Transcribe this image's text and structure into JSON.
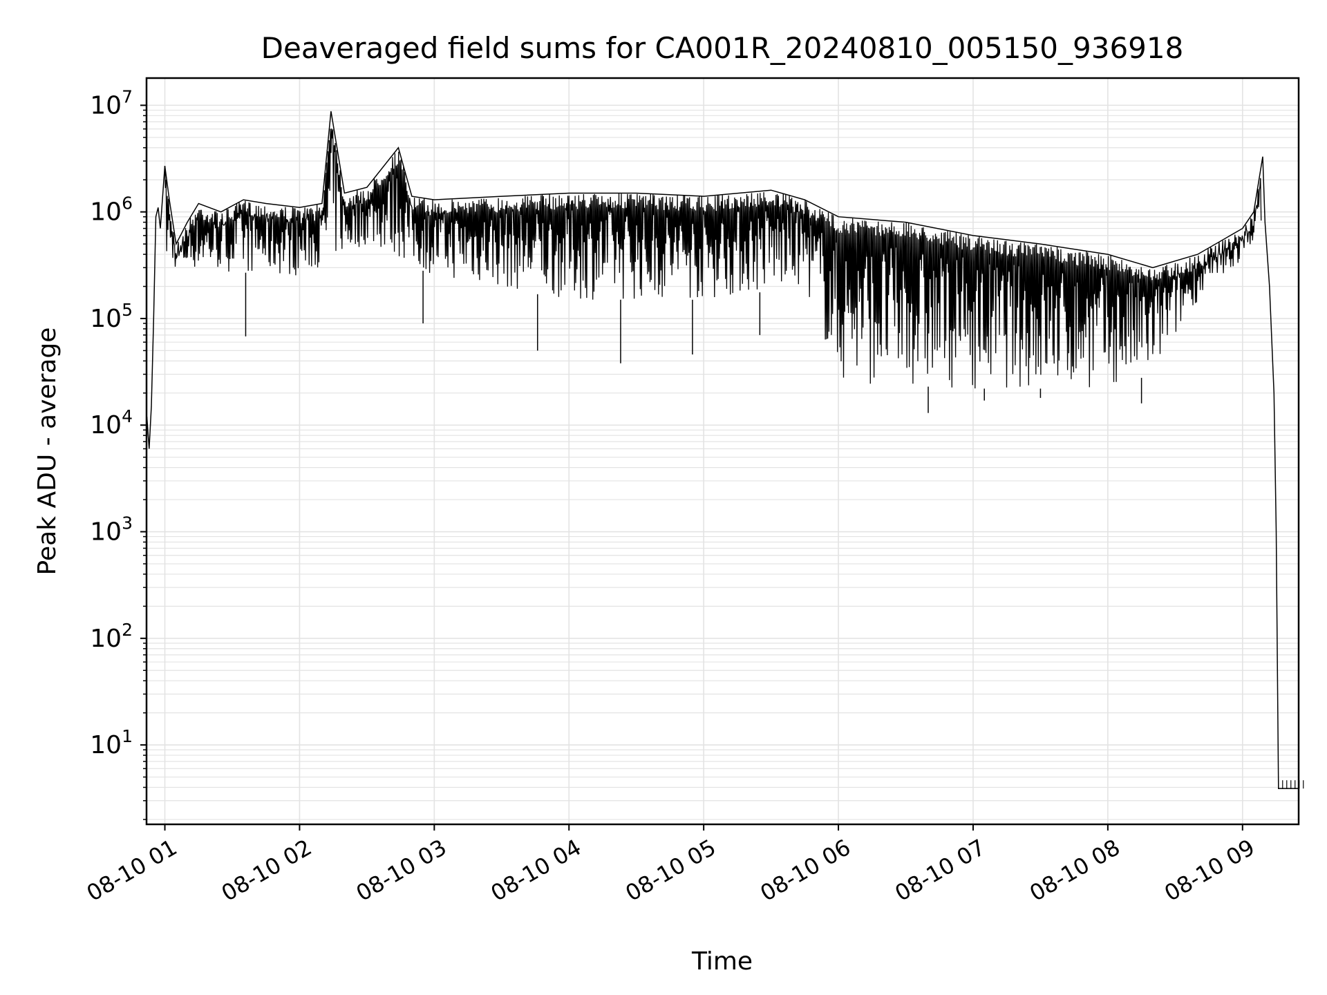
{
  "chart_data": {
    "type": "line",
    "title": "Deaveraged field sums for CA001R_20240810_005150_936918",
    "xlabel": "Time",
    "ylabel": "Peak ADU - average",
    "yscale": "log",
    "ylim": [
      1.8,
      18000000
    ],
    "xlim": [
      "2024-08-10 00:51:50",
      "2024-08-10 09:25:00"
    ],
    "grid": true,
    "line_color": "#000000",
    "grid_color": "#e3e3e3",
    "x_ticks": [
      {
        "t": "2024-08-10 01:00",
        "label": "08-10 01"
      },
      {
        "t": "2024-08-10 02:00",
        "label": "08-10 02"
      },
      {
        "t": "2024-08-10 03:00",
        "label": "08-10 03"
      },
      {
        "t": "2024-08-10 04:00",
        "label": "08-10 04"
      },
      {
        "t": "2024-08-10 05:00",
        "label": "08-10 05"
      },
      {
        "t": "2024-08-10 06:00",
        "label": "08-10 06"
      },
      {
        "t": "2024-08-10 07:00",
        "label": "08-10 07"
      },
      {
        "t": "2024-08-10 08:00",
        "label": "08-10 08"
      },
      {
        "t": "2024-08-10 09:00",
        "label": "08-10 09"
      }
    ],
    "y_ticks": [
      {
        "value": 10,
        "base": "10",
        "exp": "1"
      },
      {
        "value": 100,
        "base": "10",
        "exp": "2"
      },
      {
        "value": 1000,
        "base": "10",
        "exp": "3"
      },
      {
        "value": 10000,
        "base": "10",
        "exp": "4"
      },
      {
        "value": 100000,
        "base": "10",
        "exp": "5"
      },
      {
        "value": 1000000,
        "base": "10",
        "exp": "6"
      },
      {
        "value": 10000000,
        "base": "10",
        "exp": "7"
      }
    ],
    "series": [
      {
        "points": [
          [
            "2024-08-10 00:52",
            12000
          ],
          [
            "2024-08-10 00:53",
            6000
          ],
          [
            "2024-08-10 00:54",
            15000
          ],
          [
            "2024-08-10 00:55",
            100000
          ],
          [
            "2024-08-10 00:56",
            900000
          ],
          [
            "2024-08-10 00:57",
            1100000
          ],
          [
            "2024-08-10 00:58",
            700000
          ],
          [
            "2024-08-10 01:00",
            2700000
          ],
          [
            "2024-08-10 01:02",
            1300000
          ],
          [
            "2024-08-10 01:05",
            500000
          ],
          [
            "2024-08-10 01:10",
            800000
          ],
          [
            "2024-08-10 01:15",
            1200000
          ],
          [
            "2024-08-10 01:25",
            1000000
          ],
          [
            "2024-08-10 01:35",
            1300000
          ],
          [
            "2024-08-10 01:45",
            1200000
          ],
          [
            "2024-08-10 02:00",
            1100000
          ],
          [
            "2024-08-10 02:10",
            1200000
          ],
          [
            "2024-08-10 02:14",
            8800000
          ],
          [
            "2024-08-10 02:20",
            1500000
          ],
          [
            "2024-08-10 02:30",
            1700000
          ],
          [
            "2024-08-10 02:44",
            4000000
          ],
          [
            "2024-08-10 02:50",
            1400000
          ],
          [
            "2024-08-10 03:00",
            1300000
          ],
          [
            "2024-08-10 03:30",
            1400000
          ],
          [
            "2024-08-10 04:00",
            1500000
          ],
          [
            "2024-08-10 04:30",
            1500000
          ],
          [
            "2024-08-10 05:00",
            1400000
          ],
          [
            "2024-08-10 05:30",
            1600000
          ],
          [
            "2024-08-10 05:45",
            1300000
          ],
          [
            "2024-08-10 06:00",
            900000
          ],
          [
            "2024-08-10 06:30",
            800000
          ],
          [
            "2024-08-10 07:00",
            600000
          ],
          [
            "2024-08-10 07:30",
            500000
          ],
          [
            "2024-08-10 08:00",
            400000
          ],
          [
            "2024-08-10 08:20",
            300000
          ],
          [
            "2024-08-10 08:40",
            400000
          ],
          [
            "2024-08-10 09:00",
            700000
          ],
          [
            "2024-08-10 09:05",
            1000000
          ],
          [
            "2024-08-10 09:09",
            3300000
          ],
          [
            "2024-08-10 09:10",
            800000
          ],
          [
            "2024-08-10 09:12",
            200000
          ],
          [
            "2024-08-10 09:14",
            20000
          ],
          [
            "2024-08-10 09:15",
            1000
          ],
          [
            "2024-08-10 09:16",
            3.9
          ],
          [
            "2024-08-10 09:25",
            3.9
          ]
        ],
        "lower_envelope": [
          [
            "2024-08-10 01:00",
            300000
          ],
          [
            "2024-08-10 02:00",
            250000
          ],
          [
            "2024-08-10 02:30",
            500000
          ],
          [
            "2024-08-10 03:00",
            250000
          ],
          [
            "2024-08-10 04:00",
            150000
          ],
          [
            "2024-08-10 05:00",
            150000
          ],
          [
            "2024-08-10 05:45",
            200000
          ],
          [
            "2024-08-10 06:00",
            25000
          ],
          [
            "2024-08-10 07:00",
            22000
          ],
          [
            "2024-08-10 08:00",
            22000
          ],
          [
            "2024-08-10 08:20",
            30000
          ],
          [
            "2024-08-10 08:40",
            150000
          ],
          [
            "2024-08-10 09:00",
            350000
          ],
          [
            "2024-08-10 09:08",
            800000
          ]
        ],
        "dips": [
          [
            "2024-08-10 01:36",
            68000
          ],
          [
            "2024-08-10 02:55",
            90000
          ],
          [
            "2024-08-10 03:46",
            50000
          ],
          [
            "2024-08-10 04:23",
            38000
          ],
          [
            "2024-08-10 04:55",
            46000
          ],
          [
            "2024-08-10 05:25",
            70000
          ],
          [
            "2024-08-10 06:40",
            13000
          ],
          [
            "2024-08-10 07:05",
            17000
          ],
          [
            "2024-08-10 07:30",
            18000
          ],
          [
            "2024-08-10 08:15",
            16000
          ]
        ]
      }
    ]
  }
}
